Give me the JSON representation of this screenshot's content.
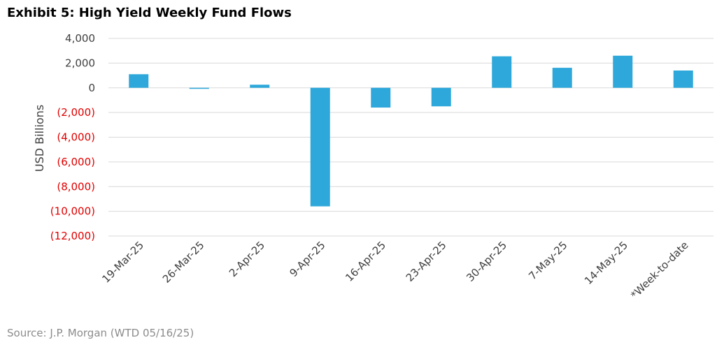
{
  "title": "Exhibit 5: High Yield Weekly Fund Flows",
  "source": "Source: J.P. Morgan (WTD 05/16/25)",
  "colors": {
    "bar": "#2EA8DA",
    "grid": "#d9d9d9",
    "negative_tick": "#e00000",
    "positive_tick": "#404040"
  },
  "chart_data": {
    "type": "bar",
    "title": "Exhibit 5: High Yield Weekly Fund Flows",
    "xlabel": "",
    "ylabel": "USD Billions",
    "ylim": [
      -12000,
      4000
    ],
    "yticks": [
      4000,
      2000,
      0,
      -2000,
      -4000,
      -6000,
      -8000,
      -10000,
      -12000
    ],
    "ytick_labels": [
      "4,000",
      "2,000",
      "0",
      "(2,000)",
      "(4,000)",
      "(6,000)",
      "(8,000)",
      "(10,000)",
      "(12,000)"
    ],
    "categories": [
      "19-Mar-25",
      "26-Mar-25",
      "2-Apr-25",
      "9-Apr-25",
      "16-Apr-25",
      "23-Apr-25",
      "30-Apr-25",
      "7-May-25",
      "14-May-25",
      "*Week-to-date"
    ],
    "values": [
      1100,
      -60,
      250,
      -9600,
      -1600,
      -1500,
      2550,
      1620,
      2600,
      1400
    ],
    "grid": true,
    "legend": "none"
  }
}
